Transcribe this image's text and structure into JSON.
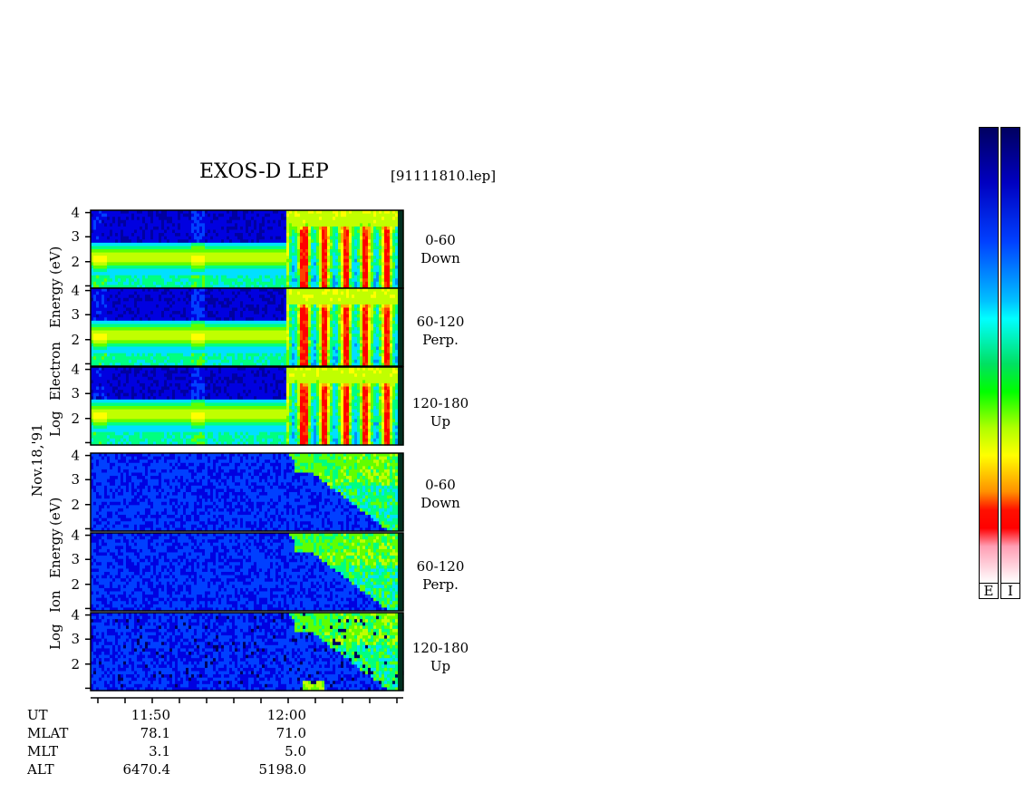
{
  "header": {
    "title": "EXOS-D LEP",
    "filename": "[91111810.lep]"
  },
  "date_label": "Nov.18,'91",
  "electron_ylabel": [
    "Log",
    "Electron",
    "Energy",
    "(eV)"
  ],
  "ion_ylabel": [
    "Log",
    "Ion",
    "Energy",
    "(eV)"
  ],
  "panels": [
    {
      "species": "electron",
      "pitch": "0-60",
      "dir": "Down"
    },
    {
      "species": "electron",
      "pitch": "60-120",
      "dir": "Perp."
    },
    {
      "species": "electron",
      "pitch": "120-180",
      "dir": "Up"
    },
    {
      "species": "ion",
      "pitch": "0-60",
      "dir": "Down"
    },
    {
      "species": "ion",
      "pitch": "60-120",
      "dir": "Perp."
    },
    {
      "species": "ion",
      "pitch": "120-180",
      "dir": "Up"
    }
  ],
  "colorbar_labels": [
    "E",
    "I"
  ],
  "ephemeris": {
    "labels": [
      "UT",
      "MLAT",
      "MLT",
      "ALT"
    ],
    "columns": [
      {
        "UT": "11:50",
        "MLAT": "78.1",
        "MLT": "3.1",
        "ALT": "6470.4"
      },
      {
        "UT": "12:00",
        "MLAT": "71.0",
        "MLT": "5.0",
        "ALT": "5198.0"
      }
    ]
  },
  "chart_data": {
    "type": "heatmap",
    "title": "EXOS-D LEP",
    "xlabel": "UT",
    "ylabel": "Log Energy (eV)",
    "x_ticks": [
      "11:50",
      "12:00"
    ],
    "y_ticks": [
      "2",
      "3",
      "4"
    ],
    "ylim": [
      1,
      4.1
    ],
    "log_y": true,
    "colormap": [
      "#ffffff",
      "#ff9eb4",
      "#ff0000",
      "#ff7f00",
      "#ffff00",
      "#00e000",
      "#00ffff",
      "#0060ff",
      "#0000c0",
      "#000060"
    ]
  }
}
